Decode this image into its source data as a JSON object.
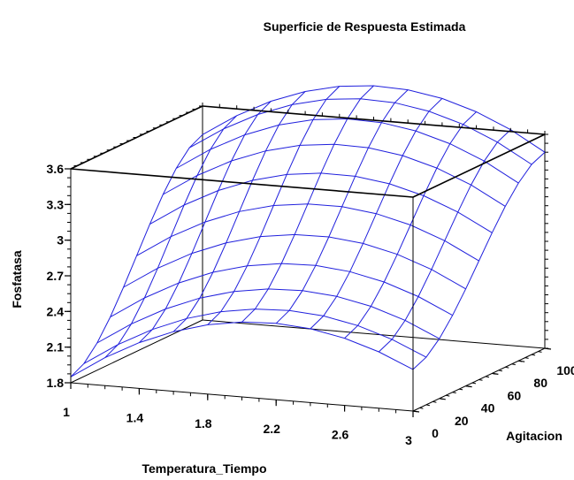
{
  "chart_data": {
    "type": "surface",
    "title": "Superficie de Respuesta Estimada",
    "xlabel": "Temperatura_Tiempo",
    "ylabel": "Agitacion",
    "zlabel": "Fosfatasa",
    "xlim": [
      1,
      3
    ],
    "ylim": [
      0,
      100
    ],
    "zlim": [
      1.8,
      3.6
    ],
    "x_ticks": [
      "1",
      "1.4",
      "1.8",
      "2.2",
      "2.6",
      "3"
    ],
    "y_ticks": [
      "0",
      "20",
      "40",
      "60",
      "80",
      "100"
    ],
    "z_ticks": [
      "1.8",
      "2.1",
      "2.4",
      "2.7",
      "3",
      "3.3",
      "3.6"
    ],
    "x_tick_values": [
      1,
      1.4,
      1.8,
      2.2,
      2.6,
      3
    ],
    "y_tick_values": [
      0,
      20,
      40,
      60,
      80,
      100
    ],
    "z_tick_values": [
      1.8,
      2.1,
      2.4,
      2.7,
      3.0,
      3.3,
      3.6
    ],
    "grid_x": [
      1.0,
      1.2,
      1.4,
      1.6,
      1.8,
      2.0,
      2.2,
      2.4,
      2.6,
      2.8,
      3.0
    ],
    "grid_y": [
      0,
      10,
      20,
      30,
      40,
      50,
      60,
      70,
      80,
      90,
      100
    ],
    "surface_corners": {
      "x1_y0": 1.85,
      "x2_y0": 2.43,
      "x3_y0": 2.15,
      "x1_y100": 3.36,
      "x2_y100": 3.89,
      "x3_y100": 3.45
    },
    "surface_color": "#2020dd",
    "box_color": "#000000"
  }
}
